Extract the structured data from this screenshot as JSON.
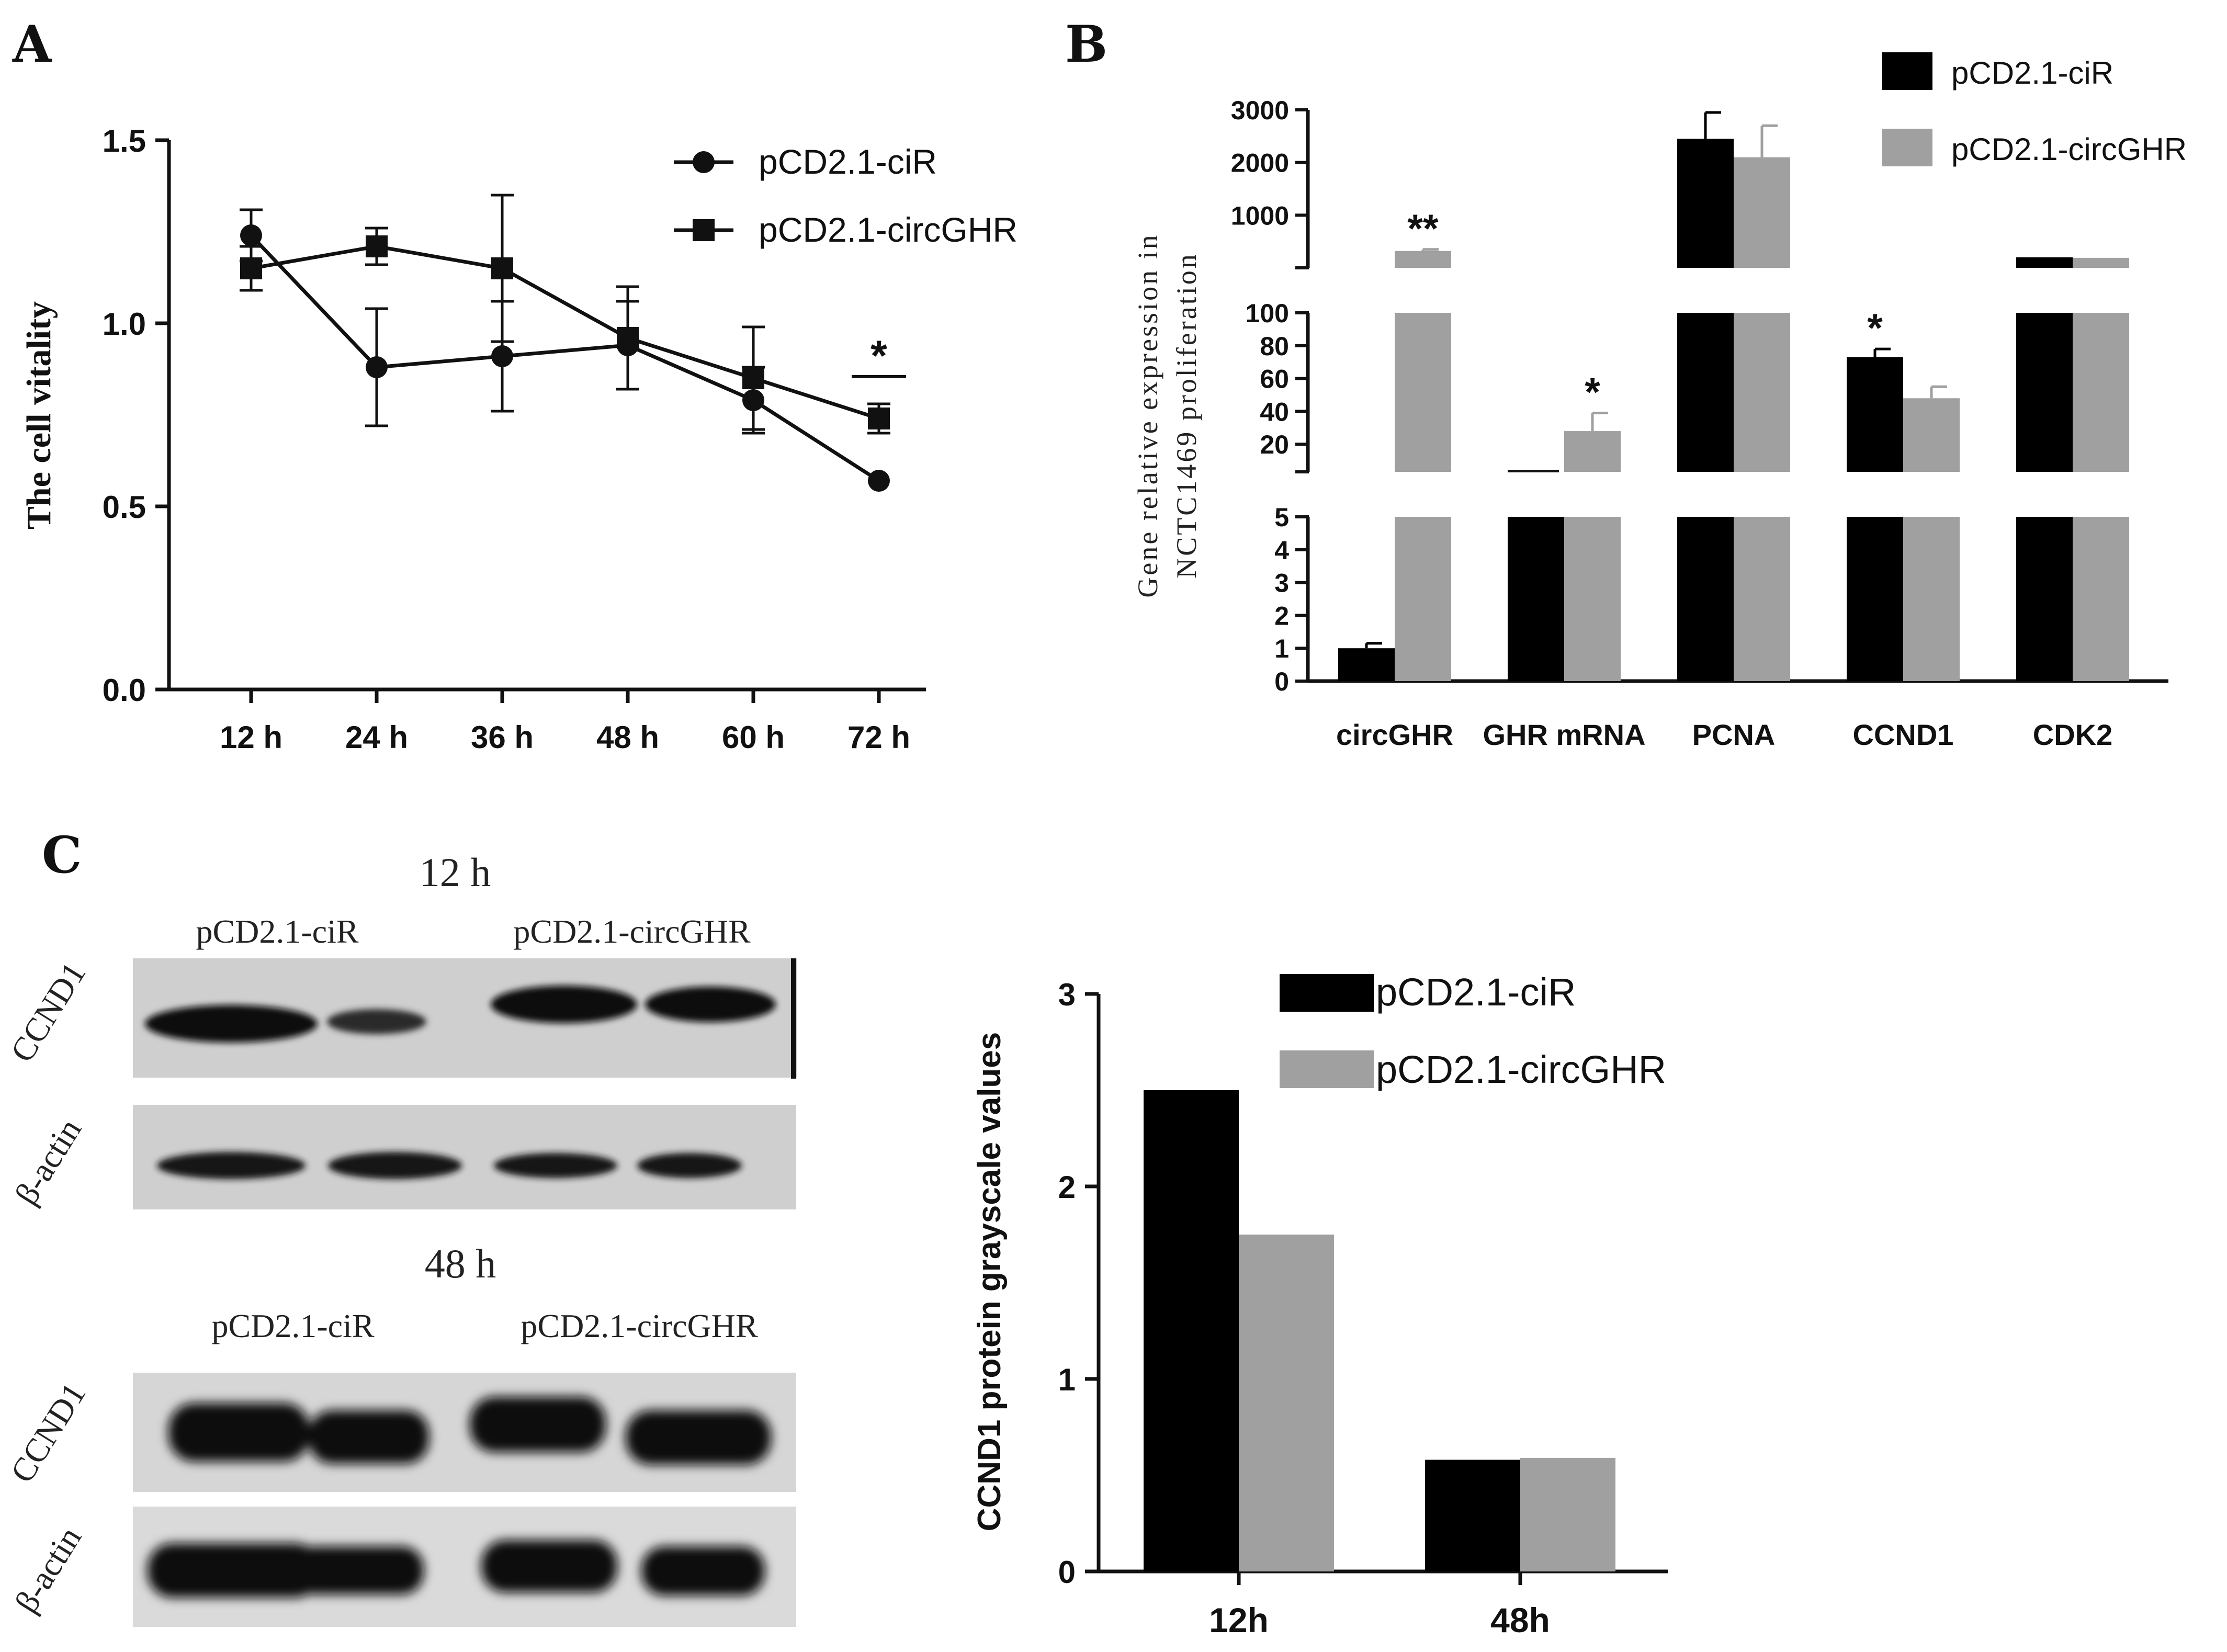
{
  "panel_letters": {
    "a": "A",
    "b": "B",
    "c": "C"
  },
  "colors": {
    "ciR": "#000000",
    "circGHR": "#a0a0a0",
    "axis": "#111111"
  },
  "blot": {
    "time_12": "12 h",
    "time_48": "48 h",
    "group_ciR": "pCD2.1-ciR",
    "group_circGHR": "pCD2.1-circGHR",
    "row_ccnd1": "CCND1",
    "row_actin": "β-actin"
  },
  "chart_data": [
    {
      "id": "A",
      "type": "line",
      "title": "",
      "xlabel": "",
      "ylabel": "The cell vitality",
      "categories": [
        "12 h",
        "24 h",
        "36 h",
        "48 h",
        "60 h",
        "72 h"
      ],
      "ylim": [
        0,
        1.5
      ],
      "yticks": [
        "0.0",
        "0.5",
        "1.0",
        "1.5"
      ],
      "ytick_values": [
        0,
        0.5,
        1.0,
        1.5
      ],
      "legend_position": "top-right",
      "series": [
        {
          "name": "pCD2.1-ciR",
          "marker": "circle",
          "values": [
            1.24,
            0.88,
            0.91,
            0.94,
            0.79,
            0.57
          ],
          "errors": [
            0.07,
            0.16,
            0.15,
            0.12,
            0.09,
            0.0
          ]
        },
        {
          "name": "pCD2.1-circGHR",
          "marker": "square",
          "values": [
            1.15,
            1.21,
            1.15,
            0.96,
            0.85,
            0.74
          ],
          "errors": [
            0.06,
            0.05,
            0.2,
            0.14,
            0.14,
            0.04
          ]
        }
      ],
      "annotations": [
        {
          "category": "72 h",
          "text": "*"
        }
      ]
    },
    {
      "id": "B",
      "type": "bar",
      "title": "",
      "xlabel": "",
      "ylabel": "Gene relative expression in NCTC1469 proliferation",
      "ylabel_line1": "Gene relative expression in",
      "ylabel_line2": "NCTC1469 proliferation",
      "categories": [
        "circGHR",
        "GHR mRNA",
        "PCNA",
        "CCND1",
        "CDK2"
      ],
      "axis_segments": [
        {
          "range": [
            0,
            5
          ],
          "ticks": [
            "0",
            "1",
            "2",
            "3",
            "4",
            "5"
          ],
          "tick_values": [
            0,
            1,
            2,
            3,
            4,
            5
          ]
        },
        {
          "range": [
            0,
            100
          ],
          "ticks": [
            "20",
            "40",
            "60",
            "80",
            "100"
          ],
          "tick_values": [
            20,
            40,
            60,
            80,
            100
          ]
        },
        {
          "range": [
            0,
            3000
          ],
          "ticks": [
            "1000",
            "2000",
            "3000"
          ],
          "tick_values": [
            1000,
            2000,
            3000
          ]
        }
      ],
      "legend_position": "top-right",
      "series": [
        {
          "name": "pCD2.1-ciR",
          "values": [
            1.0,
            5.0,
            2450,
            73,
            200
          ],
          "errors": [
            0.15,
            0,
            500,
            5,
            0
          ]
        },
        {
          "name": "pCD2.1-circGHR",
          "values": [
            320,
            28,
            2100,
            48,
            190
          ],
          "errors": [
            30,
            11,
            600,
            7,
            0
          ]
        }
      ],
      "annotations": [
        {
          "category": "circGHR",
          "text": "**"
        },
        {
          "category": "GHR mRNA",
          "text": "*"
        },
        {
          "category": "CCND1",
          "text": "*"
        }
      ]
    },
    {
      "id": "C",
      "type": "bar",
      "title": "",
      "xlabel": "",
      "ylabel": "CCND1 protein grayscale values",
      "categories": [
        "12h",
        "48h"
      ],
      "ylim": [
        0,
        3
      ],
      "yticks": [
        "0",
        "1",
        "2",
        "3"
      ],
      "ytick_values": [
        0,
        1,
        2,
        3
      ],
      "legend_position": "top-right",
      "series": [
        {
          "name": "pCD2.1-ciR",
          "values": [
            2.5,
            0.58
          ]
        },
        {
          "name": "pCD2.1-circGHR",
          "values": [
            1.75,
            0.59
          ]
        }
      ]
    }
  ]
}
